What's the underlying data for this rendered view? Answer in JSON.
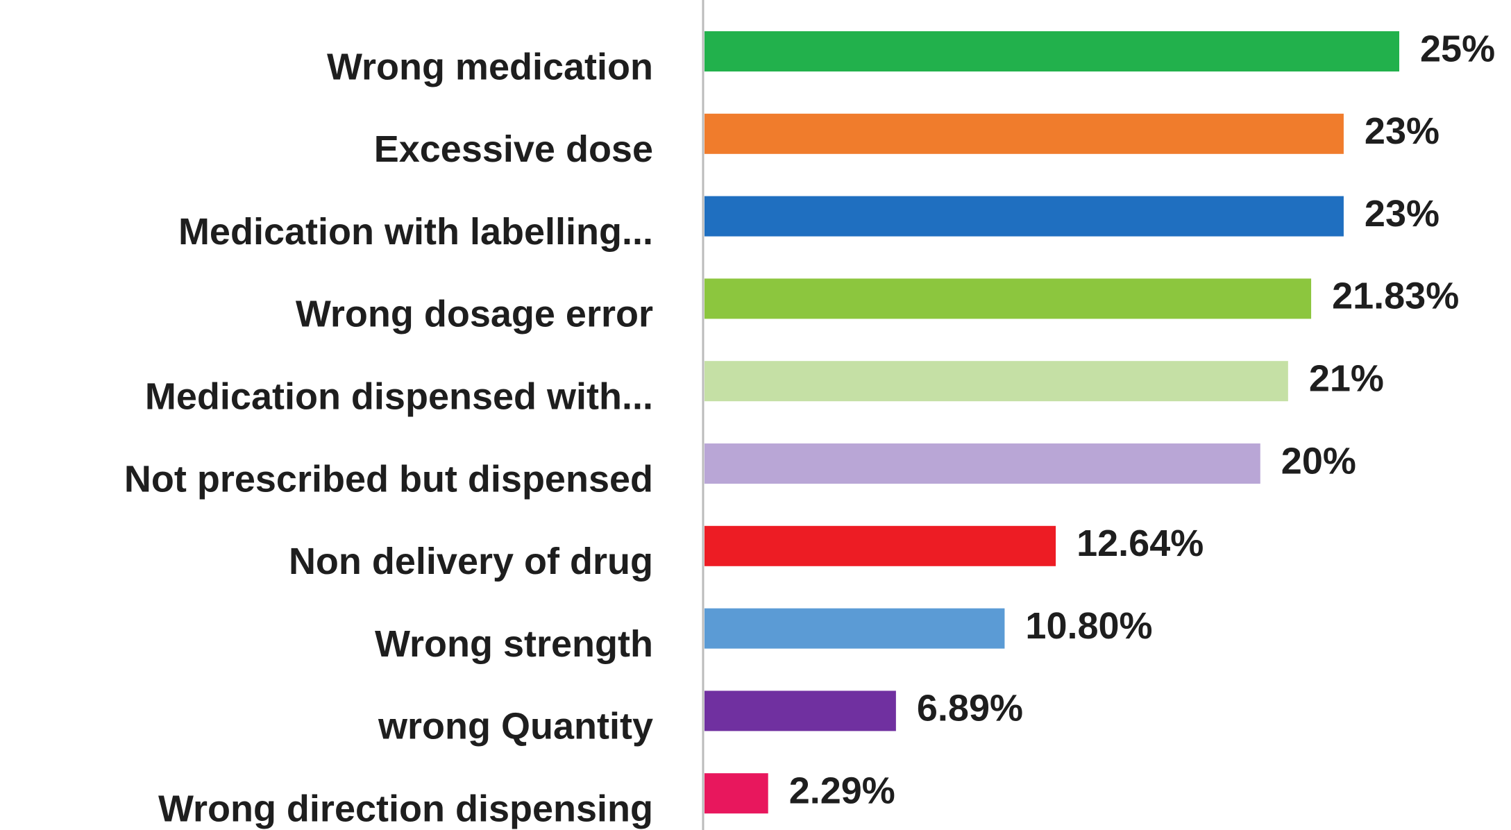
{
  "chart_data": {
    "type": "bar",
    "orientation": "horizontal",
    "categories": [
      "Wrong medication",
      "Excessive dose",
      "Medication with labelling...",
      "Wrong dosage error",
      "Medication dispensed with...",
      "Not prescribed but dispensed",
      "Non delivery of drug",
      "Wrong strength",
      "wrong Quantity",
      "Wrong direction dispensing"
    ],
    "values": [
      25,
      23,
      23,
      21.83,
      21,
      20,
      12.64,
      10.8,
      6.89,
      2.29
    ],
    "value_labels": [
      "25%",
      "23%",
      "23%",
      "21.83%",
      "21%",
      "20%",
      "12.64%",
      "10.80%",
      "6.89%",
      "2.29%"
    ],
    "colors": [
      "#22b14c",
      "#f07c2c",
      "#1f6fc0",
      "#8cc63e",
      "#c5e0a5",
      "#b9a6d6",
      "#ed1c24",
      "#5b9bd5",
      "#7030a0",
      "#e8175d"
    ]
  }
}
